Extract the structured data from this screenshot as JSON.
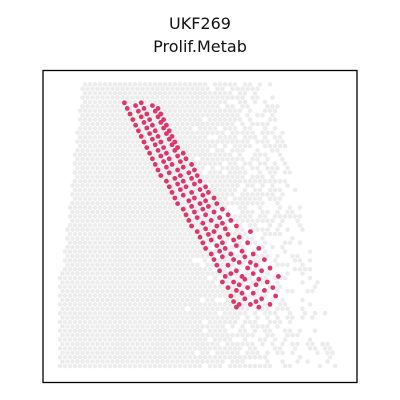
{
  "chart_data": {
    "type": "scatter",
    "title": "UKF269",
    "subtitle": "Prolif.Metab",
    "xlabel": "",
    "ylabel": "",
    "grid": false,
    "axes": "off",
    "colors": {
      "background_spots": "#ececec",
      "highlight": "#e0356a",
      "frame": "#000000"
    },
    "tissue_profile": [
      [
        0,
        0.0,
        0.73
      ],
      [
        2,
        0.0,
        0.73
      ],
      [
        4,
        0.0,
        0.72
      ],
      [
        6,
        0.0,
        0.71
      ],
      [
        8,
        0.0,
        0.71
      ],
      [
        10,
        0.0,
        0.7
      ],
      [
        12,
        0.0,
        0.7
      ],
      [
        14,
        0.0,
        0.69
      ],
      [
        16,
        0.0,
        0.68
      ],
      [
        18,
        0.0,
        0.68
      ],
      [
        20,
        0.0,
        0.67
      ],
      [
        22,
        0.0,
        0.67
      ],
      [
        24,
        0.0,
        0.66
      ],
      [
        26,
        0.0,
        0.66
      ],
      [
        28,
        0.0,
        0.65
      ],
      [
        30,
        0.0,
        0.65
      ],
      [
        32,
        0.01,
        0.64
      ],
      [
        34,
        0.01,
        0.64
      ],
      [
        36,
        0.01,
        0.63
      ],
      [
        38,
        0.01,
        0.63
      ],
      [
        40,
        0.02,
        0.62
      ],
      [
        42,
        0.02,
        0.62
      ],
      [
        44,
        0.02,
        0.61
      ],
      [
        46,
        0.02,
        0.61
      ],
      [
        48,
        0.03,
        0.6
      ],
      [
        50,
        0.03,
        0.6
      ],
      [
        52,
        0.03,
        0.59
      ],
      [
        54,
        0.03,
        0.59
      ],
      [
        56,
        0.04,
        0.58
      ],
      [
        58,
        0.04,
        0.58
      ],
      [
        60,
        0.04,
        0.57
      ],
      [
        62,
        0.04,
        0.57
      ],
      [
        64,
        0.05,
        0.56
      ],
      [
        66,
        0.05,
        0.56
      ],
      [
        68,
        0.05,
        0.55
      ],
      [
        70,
        0.05,
        0.55
      ],
      [
        72,
        0.06,
        0.54
      ],
      [
        74,
        0.06,
        0.54
      ],
      [
        76,
        0.06,
        0.53
      ],
      [
        78,
        0.06,
        0.53
      ],
      [
        80,
        0.07,
        0.52
      ],
      [
        82,
        0.07,
        0.52
      ],
      [
        84,
        0.07,
        0.51
      ],
      [
        86,
        0.07,
        0.51
      ],
      [
        88,
        0.08,
        0.5
      ],
      [
        90,
        0.08,
        0.5
      ],
      [
        92,
        0.08,
        0.49
      ],
      [
        94,
        0.08,
        0.49
      ]
    ],
    "series": [
      {
        "points": [
          [
            21,
            63
          ],
          [
            21,
            71
          ],
          [
            22,
            64
          ],
          [
            22,
            68
          ],
          [
            22,
            75
          ],
          [
            23,
            62
          ],
          [
            23,
            70
          ],
          [
            24,
            66
          ],
          [
            24,
            72
          ],
          [
            25,
            61
          ],
          [
            25,
            77
          ],
          [
            26,
            65
          ],
          [
            26,
            69
          ],
          [
            27,
            63
          ],
          [
            27,
            73
          ],
          [
            28,
            60
          ],
          [
            28,
            67
          ],
          [
            28,
            76
          ],
          [
            29,
            64
          ],
          [
            29,
            70
          ],
          [
            30,
            58
          ],
          [
            30,
            62
          ],
          [
            30,
            74
          ],
          [
            31,
            66
          ],
          [
            31,
            71
          ],
          [
            32,
            59
          ],
          [
            32,
            65
          ],
          [
            32,
            78
          ],
          [
            33,
            61
          ],
          [
            33,
            69
          ],
          [
            34,
            57
          ],
          [
            34,
            63
          ],
          [
            34,
            72
          ],
          [
            35,
            67
          ],
          [
            35,
            75
          ],
          [
            36,
            56
          ],
          [
            36,
            60
          ],
          [
            36,
            70
          ],
          [
            37,
            64
          ],
          [
            37,
            68
          ],
          [
            38,
            55
          ],
          [
            38,
            62
          ],
          [
            38,
            73
          ],
          [
            39,
            58
          ],
          [
            39,
            66
          ],
          [
            40,
            54
          ],
          [
            40,
            61
          ],
          [
            40,
            69
          ],
          [
            41,
            57
          ],
          [
            41,
            65
          ],
          [
            42,
            52
          ],
          [
            42,
            59
          ],
          [
            42,
            71
          ],
          [
            43,
            56
          ],
          [
            43,
            63
          ],
          [
            44,
            51
          ],
          [
            44,
            58
          ],
          [
            44,
            67
          ],
          [
            45,
            54
          ],
          [
            45,
            62
          ],
          [
            46,
            50
          ],
          [
            46,
            57
          ],
          [
            46,
            64
          ],
          [
            47,
            53
          ],
          [
            47,
            60
          ],
          [
            48,
            49
          ],
          [
            48,
            55
          ],
          [
            48,
            68
          ],
          [
            49,
            52
          ],
          [
            49,
            59
          ],
          [
            50,
            47
          ],
          [
            50,
            56
          ],
          [
            50,
            63
          ],
          [
            51,
            51
          ],
          [
            51,
            58
          ],
          [
            52,
            46
          ],
          [
            52,
            54
          ],
          [
            52,
            61
          ],
          [
            53,
            49
          ],
          [
            53,
            57
          ],
          [
            54,
            45
          ],
          [
            54,
            52
          ],
          [
            54,
            60
          ],
          [
            55,
            48
          ],
          [
            55,
            55
          ],
          [
            56,
            44
          ],
          [
            56,
            51
          ],
          [
            56,
            58
          ],
          [
            57,
            47
          ],
          [
            57,
            53
          ],
          [
            58,
            42
          ],
          [
            58,
            50
          ],
          [
            58,
            56
          ],
          [
            59,
            46
          ],
          [
            59,
            52
          ],
          [
            60,
            41
          ],
          [
            60,
            48
          ],
          [
            60,
            55
          ],
          [
            61,
            44
          ],
          [
            61,
            51
          ],
          [
            62,
            40
          ],
          [
            62,
            47
          ],
          [
            62,
            53
          ],
          [
            63,
            43
          ],
          [
            63,
            50
          ],
          [
            64,
            39
          ],
          [
            64,
            45
          ],
          [
            64,
            52
          ],
          [
            65,
            42
          ],
          [
            65,
            48
          ],
          [
            66,
            38
          ],
          [
            66,
            44
          ],
          [
            66,
            50
          ],
          [
            67,
            41
          ],
          [
            67,
            47
          ],
          [
            68,
            36
          ],
          [
            68,
            43
          ],
          [
            68,
            49
          ],
          [
            69,
            39
          ],
          [
            69,
            46
          ],
          [
            70,
            35
          ],
          [
            70,
            42
          ],
          [
            70,
            48
          ],
          [
            71,
            38
          ],
          [
            71,
            44
          ],
          [
            72,
            34
          ],
          [
            72,
            40
          ],
          [
            72,
            47
          ],
          [
            73,
            37
          ],
          [
            73,
            43
          ],
          [
            74,
            33
          ],
          [
            74,
            39
          ],
          [
            74,
            45
          ],
          [
            75,
            36
          ],
          [
            75,
            42
          ],
          [
            76,
            32
          ],
          [
            76,
            38
          ],
          [
            76,
            44
          ],
          [
            77,
            35
          ],
          [
            77,
            41
          ],
          [
            78,
            31
          ],
          [
            78,
            37
          ],
          [
            78,
            42
          ],
          [
            79,
            34
          ],
          [
            79,
            40
          ],
          [
            80,
            30
          ],
          [
            80,
            36
          ],
          [
            80,
            41
          ],
          [
            81,
            33
          ],
          [
            81,
            39
          ],
          [
            82,
            29
          ],
          [
            82,
            35
          ],
          [
            82,
            40
          ],
          [
            83,
            32
          ],
          [
            83,
            38
          ],
          [
            84,
            28
          ],
          [
            84,
            34
          ],
          [
            84,
            39
          ],
          [
            85,
            31
          ],
          [
            85,
            37
          ],
          [
            86,
            27
          ],
          [
            86,
            33
          ],
          [
            86,
            38
          ],
          [
            87,
            30
          ],
          [
            87,
            36
          ],
          [
            88,
            26
          ],
          [
            88,
            32
          ],
          [
            88,
            37
          ],
          [
            89,
            29
          ],
          [
            89,
            35
          ],
          [
            90,
            25
          ],
          [
            90,
            31
          ],
          [
            90,
            36
          ],
          [
            91,
            28
          ],
          [
            91,
            34
          ],
          [
            92,
            24
          ],
          [
            92,
            30
          ],
          [
            92,
            35
          ],
          [
            93,
            27
          ],
          [
            93,
            33
          ],
          [
            94,
            23
          ],
          [
            94,
            29
          ]
        ]
      }
    ]
  }
}
